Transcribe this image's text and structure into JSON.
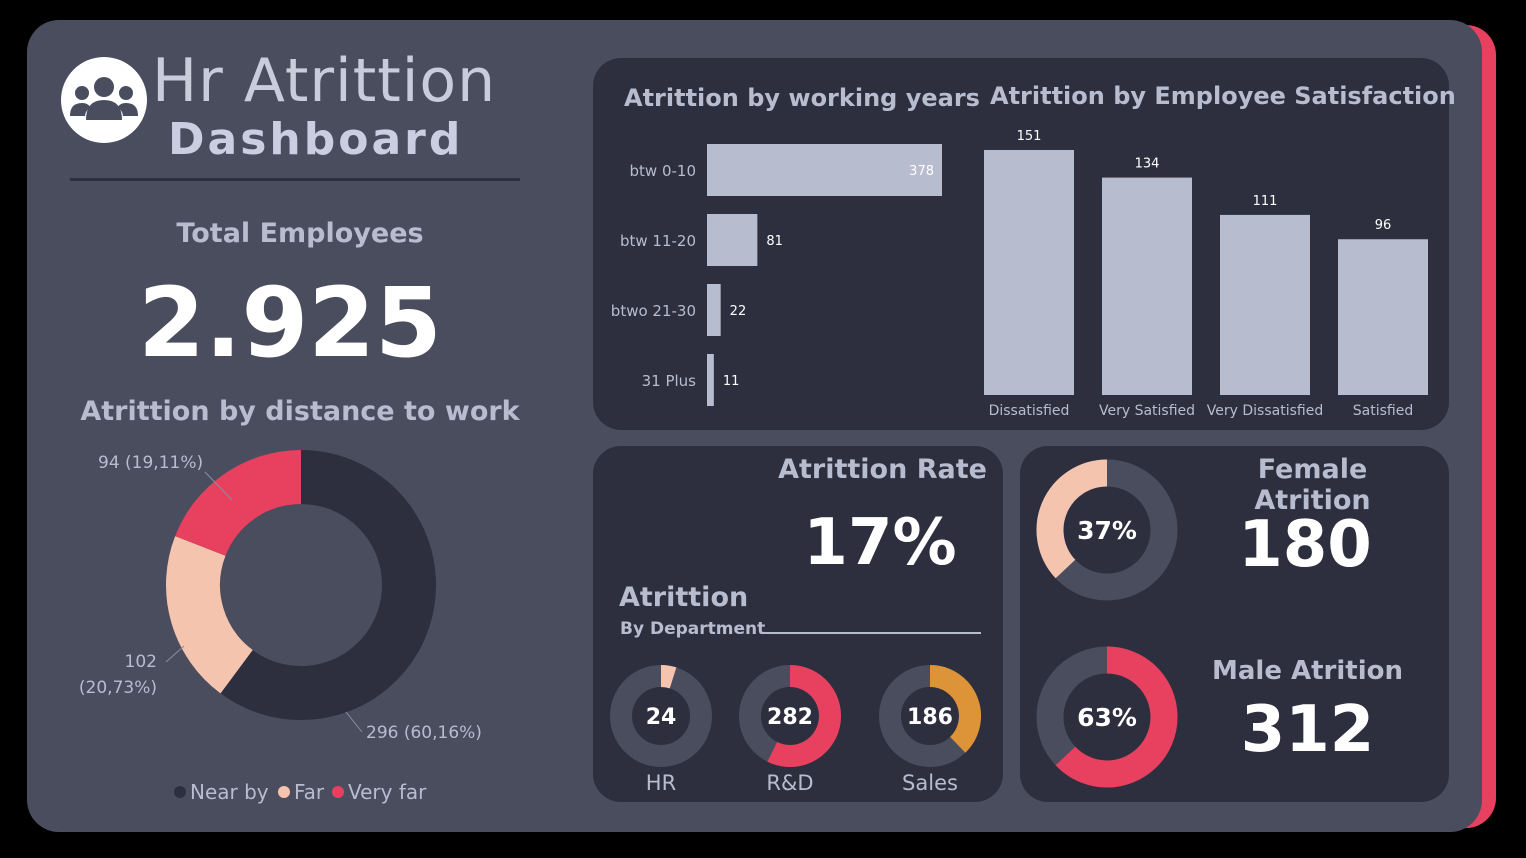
{
  "header": {
    "title_line1": "Hr Atrittion",
    "title_line2": "Dashboard",
    "logo_icon": "users-group-icon"
  },
  "total_employees": {
    "label": "Total Employees",
    "value": "2.925"
  },
  "distance_chart": {
    "title": "Atrittion by distance to work",
    "legend": [
      "Near by",
      "Far",
      "Very far"
    ],
    "labels": {
      "very_far": "94 (19,11%)",
      "far_count": "102",
      "far_pct": "(20,73%)",
      "near_by": "296 (60,16%)"
    }
  },
  "working_years_chart": {
    "title": "Atrittion by working years"
  },
  "satisfaction_chart": {
    "title": "Atrittion by Employee Satisfaction"
  },
  "attrition_rate": {
    "label": "Atrittion Rate",
    "value": "17%"
  },
  "department": {
    "title": "Atrittion",
    "subtitle": "By Department",
    "items": [
      {
        "label": "HR",
        "value": "24"
      },
      {
        "label": "R&D",
        "value": "282"
      },
      {
        "label": "Sales",
        "value": "186"
      }
    ]
  },
  "female": {
    "label": "Female Atrition",
    "value": "180",
    "pct": "37%"
  },
  "male": {
    "label": "Male Atrition",
    "value": "312",
    "pct": "63%"
  },
  "colors": {
    "background": "#000000",
    "canvas": "#4a4d5e",
    "panel": "#2e2f3e",
    "bar": "#b8bccf",
    "accent_red": "#e8405f",
    "accent_peach": "#f5c4ae",
    "accent_orange": "#dd9438",
    "ring_track": "#4a4d5e",
    "text_muted": "#b8bccf",
    "text_white": "#ffffff"
  },
  "chart_data": [
    {
      "type": "pie",
      "title": "Atrittion by distance to work",
      "categories": [
        "Near by",
        "Far",
        "Very far"
      ],
      "values": [
        296,
        102,
        94
      ],
      "percentages": [
        60.16,
        20.73,
        19.11
      ],
      "legend": "bottom"
    },
    {
      "type": "bar",
      "orientation": "horizontal",
      "title": "Atrittion by working years",
      "categories": [
        "btw 0-10",
        "btw 11-20",
        "btwo 21-30",
        "31 Plus"
      ],
      "values": [
        378,
        81,
        22,
        11
      ]
    },
    {
      "type": "bar",
      "title": "Atrittion by Employee Satisfaction",
      "categories": [
        "Dissatisfied",
        "Very Satisfied",
        "Very Dissatisfied",
        "Satisfied"
      ],
      "values": [
        151,
        134,
        111,
        96
      ]
    },
    {
      "type": "pie",
      "title": "Atrittion By Department",
      "categories": [
        "HR",
        "R&D",
        "Sales"
      ],
      "values": [
        24,
        282,
        186
      ]
    },
    {
      "type": "pie",
      "title": "Female Atrition",
      "categories": [
        "Female"
      ],
      "values": [
        37
      ]
    },
    {
      "type": "pie",
      "title": "Male Atrition",
      "categories": [
        "Male"
      ],
      "values": [
        63
      ]
    }
  ]
}
